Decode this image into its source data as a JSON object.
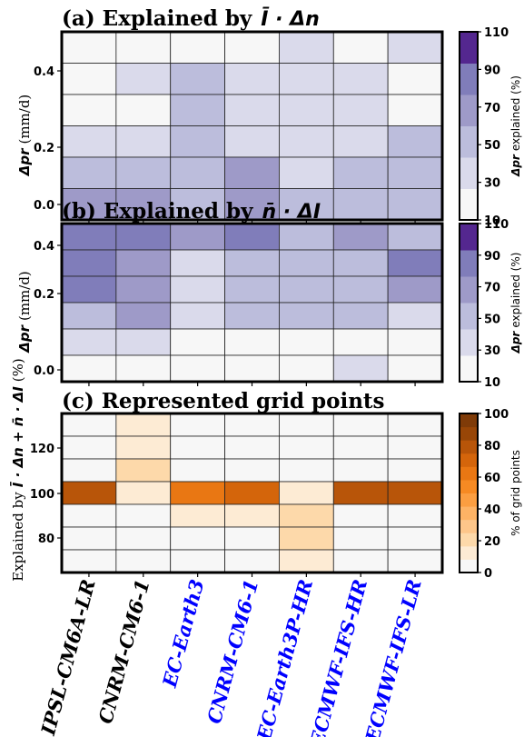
{
  "chart_data": [
    {
      "id": "a",
      "type": "heatmap",
      "title_prefix": "(a) Explained by",
      "title_math": "Ī · Δn",
      "ylabel": "Δpr (mm/d)",
      "ylabel_math": "Δpr",
      "ylabel_unit": "(mm/d)",
      "yticks": [
        "0.0",
        "0.2",
        "0.4"
      ],
      "colorbar": {
        "label_math": "Δpr",
        "label_text": "explained (%)",
        "ticks": [
          "10",
          "30",
          "50",
          "70",
          "90",
          "110"
        ],
        "bins": [
          "#f7f7f7",
          "#dadaeb",
          "#bcbddc",
          "#9e9ac8",
          "#807dba",
          "#54278f"
        ]
      },
      "rows_top_to_bottom": [
        [
          20,
          20,
          20,
          20,
          40,
          20,
          40
        ],
        [
          20,
          40,
          60,
          40,
          40,
          40,
          20
        ],
        [
          20,
          20,
          60,
          40,
          40,
          40,
          20
        ],
        [
          40,
          40,
          60,
          40,
          40,
          40,
          60
        ],
        [
          60,
          60,
          60,
          80,
          40,
          60,
          60
        ],
        [
          80,
          80,
          60,
          80,
          60,
          60,
          60
        ]
      ]
    },
    {
      "id": "b",
      "type": "heatmap",
      "title_prefix": "(b) Explained by",
      "title_math": "n̄ · ΔI",
      "ylabel": "Δpr (mm/d)",
      "ylabel_math": "Δpr",
      "ylabel_unit": "(mm/d)",
      "yticks": [
        "0.0",
        "0.2",
        "0.4"
      ],
      "colorbar": {
        "label_math": "Δpr",
        "label_text": "explained (%)",
        "ticks": [
          "10",
          "30",
          "50",
          "70",
          "90",
          "110"
        ],
        "bins": [
          "#f7f7f7",
          "#dadaeb",
          "#bcbddc",
          "#9e9ac8",
          "#807dba",
          "#54278f"
        ]
      },
      "rows_top_to_bottom": [
        [
          100,
          100,
          80,
          100,
          60,
          80,
          60
        ],
        [
          100,
          80,
          40,
          60,
          60,
          60,
          100
        ],
        [
          100,
          80,
          40,
          60,
          60,
          60,
          80
        ],
        [
          60,
          80,
          40,
          60,
          60,
          60,
          40
        ],
        [
          40,
          40,
          20,
          20,
          20,
          20,
          20
        ],
        [
          20,
          20,
          20,
          20,
          20,
          40,
          20
        ]
      ]
    },
    {
      "id": "c",
      "type": "heatmap",
      "title_prefix": "(c) Represented grid points",
      "title_math": "",
      "ylabel": "Explained by Ī · Δn + n̄ · ΔI (%)",
      "ylabel_text": "Explained by",
      "ylabel_math": "Ī · Δn + n̄ · ΔI",
      "ylabel_unit": "(%)",
      "yticks": [
        "80",
        "100",
        "120"
      ],
      "colorbar": {
        "label_text": "% of grid points",
        "ticks": [
          "0",
          "20",
          "40",
          "60",
          "80",
          "100"
        ],
        "bins": [
          "#f7f7f7",
          "#fdebd4",
          "#fdd9aa",
          "#fdc68a",
          "#fdb365",
          "#fb9e41",
          "#f68a23",
          "#e97713",
          "#d4650b",
          "#b85509",
          "#984607",
          "#7f3b08"
        ]
      },
      "rows_top_to_bottom": [
        [
          0,
          10,
          0,
          0,
          0,
          0,
          0
        ],
        [
          0,
          10,
          0,
          0,
          0,
          0,
          0
        ],
        [
          0,
          20,
          0,
          0,
          0,
          0,
          0
        ],
        [
          90,
          10,
          70,
          80,
          10,
          90,
          90
        ],
        [
          0,
          0,
          10,
          10,
          20,
          0,
          0
        ],
        [
          0,
          0,
          0,
          0,
          20,
          0,
          0
        ],
        [
          0,
          0,
          0,
          0,
          10,
          0,
          0
        ]
      ]
    }
  ],
  "models": [
    {
      "name": "IPSL-CM6A-LR",
      "color": "#000000"
    },
    {
      "name": "CNRM-CM6-1",
      "color": "#000000"
    },
    {
      "name": "EC-Earth3",
      "color": "#0000ff"
    },
    {
      "name": "CNRM-CM6-1",
      "color": "#0000ff"
    },
    {
      "name": "EC-Earth3P-HR",
      "color": "#0000ff"
    },
    {
      "name": "ECMWF-IFS-HR",
      "color": "#0000ff"
    },
    {
      "name": "ECMWF-IFS-LR",
      "color": "#0000ff"
    }
  ]
}
